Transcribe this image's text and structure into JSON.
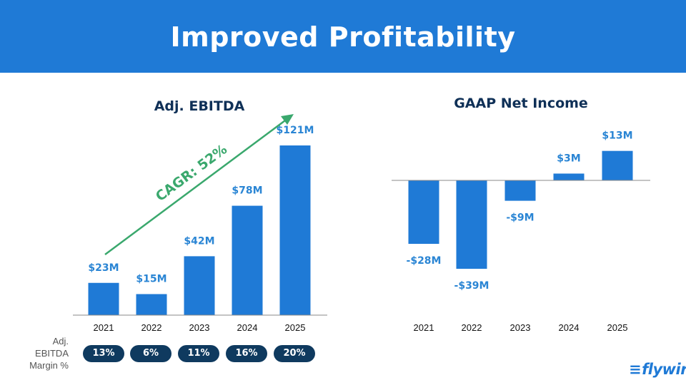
{
  "title": "Improved Profitability",
  "colors": {
    "bar": "#1f7ad6",
    "label": "#2a85d4",
    "cagr": "#3aa86d",
    "pill": "#0f3a5f"
  },
  "chart_data": [
    {
      "type": "bar",
      "title": "Adj. EBITDA",
      "categories": [
        "2021",
        "2022",
        "2023",
        "2024",
        "2025"
      ],
      "values": [
        23,
        15,
        42,
        78,
        121
      ],
      "value_labels": [
        "$23M",
        "$15M",
        "$42M",
        "$78M",
        "$121M"
      ],
      "unit": "$M",
      "ylim": [
        0,
        121
      ],
      "annotation": "CAGR: 52%"
    },
    {
      "type": "bar",
      "title": "GAAP Net Income",
      "categories": [
        "2021",
        "2022",
        "2023",
        "2024",
        "2025"
      ],
      "values": [
        -28,
        -39,
        -9,
        3,
        13
      ],
      "value_labels": [
        "-$28M",
        "-$39M",
        "-$9M",
        "$3M",
        "$13M"
      ],
      "unit": "$M",
      "ylim": [
        -39,
        13
      ]
    }
  ],
  "margin_row": {
    "label_lines": [
      "Adj.",
      "EBITDA",
      "Margin %"
    ],
    "values": [
      "13%",
      "6%",
      "11%",
      "16%",
      "20%"
    ]
  },
  "logo": {
    "mark": "≡",
    "text": "flywire"
  }
}
